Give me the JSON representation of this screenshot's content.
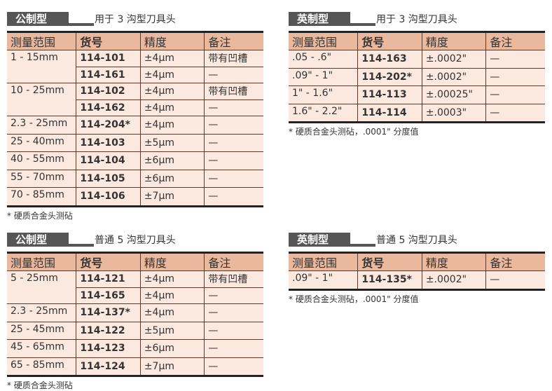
{
  "headers": [
    "测量范围",
    "货号",
    "精度",
    "备注"
  ],
  "panels": [
    {
      "tag": "公制型",
      "subtitle": "用于 3 沟型刀具头",
      "rows": [
        {
          "range": "1 - 15mm",
          "span": 2,
          "code": "114-101",
          "accuracy": "±4μm",
          "note": "带有凹槽"
        },
        {
          "range": null,
          "code": "114-161",
          "accuracy": "±4μm",
          "note": "—"
        },
        {
          "range": "10 - 25mm",
          "span": 2,
          "code": "114-102",
          "accuracy": "±4μm",
          "note": "带有凹槽"
        },
        {
          "range": null,
          "code": "114-162",
          "accuracy": "±4μm",
          "note": "—"
        },
        {
          "range": "2.3 - 25mm",
          "code": "114-204*",
          "accuracy": "±4μm",
          "note": "—"
        },
        {
          "range": "25 - 40mm",
          "code": "114-103",
          "accuracy": "±5μm",
          "note": "—"
        },
        {
          "range": "40 - 55mm",
          "code": "114-104",
          "accuracy": "±6μm",
          "note": "—"
        },
        {
          "range": "55 - 70mm",
          "code": "114-105",
          "accuracy": "±6μm",
          "note": "—"
        },
        {
          "range": "70 - 85mm",
          "code": "114-106",
          "accuracy": "±7μm",
          "note": "—"
        }
      ],
      "footnote": "* 硬质合金头测砧"
    },
    {
      "tag": "英制型",
      "subtitle": "用于 3 沟型刀具头",
      "rows": [
        {
          "range": ".05 - .6\"",
          "code": "114-163",
          "accuracy": "±.0002\"",
          "note": "—"
        },
        {
          "range": ".09\" - 1\"",
          "code": "114-202*",
          "accuracy": "±.0002\"",
          "note": "—"
        },
        {
          "range": "1\" - 1.6\"",
          "code": "114-113",
          "accuracy": "±.00025\"",
          "note": "—"
        },
        {
          "range": "1.6\" - 2.2\"",
          "code": "114-114",
          "accuracy": "±.0003\"",
          "note": "—"
        }
      ],
      "footnote": "* 硬质合金头测砧，.0001\" 分度值"
    },
    {
      "tag": "公制型",
      "subtitle": "普通 5 沟型刀具头",
      "rows": [
        {
          "range": "5 - 25mm",
          "span": 2,
          "code": "114-121",
          "accuracy": "±4μm",
          "note": "带有凹槽"
        },
        {
          "range": null,
          "code": "114-165",
          "accuracy": "±4μm",
          "note": "—"
        },
        {
          "range": "2.3 - 25mm",
          "code": "114-137*",
          "accuracy": "±4μm",
          "note": "—"
        },
        {
          "range": "25 - 45mm",
          "code": "114-122",
          "accuracy": "±5μm",
          "note": "—"
        },
        {
          "range": "45 - 65mm",
          "code": "114-123",
          "accuracy": "±6μm",
          "note": "—"
        },
        {
          "range": "65 - 85mm",
          "code": "114-124",
          "accuracy": "±7μm",
          "note": "—"
        }
      ],
      "footnote": "* 硬质合金头测砧"
    },
    {
      "tag": "英制型",
      "subtitle": "普通 5 沟型刀具头",
      "rows": [
        {
          "range": ".09\" - 1\"",
          "code": "114-135*",
          "accuracy": "±.0002\"",
          "note": "—"
        }
      ],
      "footnote": "* 硬质合金头测砧，.0001\" 分度值"
    }
  ]
}
